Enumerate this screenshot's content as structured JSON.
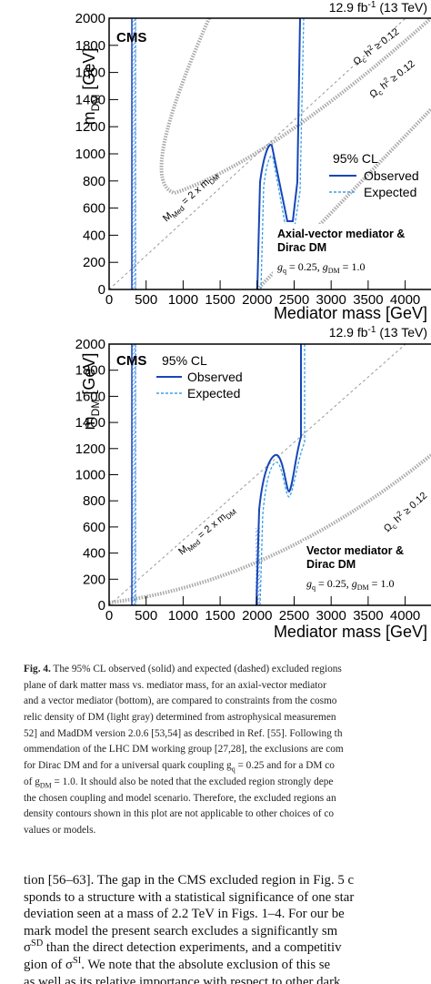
{
  "chart_data": [
    {
      "type": "contour",
      "title": [
        "12.9 fb",
        "-1",
        " (13 TeV)"
      ],
      "experiment": "CMS",
      "xlabel": "Mediator mass [GeV]",
      "ylabel": [
        "m",
        "DM",
        " [GeV]"
      ],
      "xlim": [
        0,
        4300
      ],
      "ylim": [
        0,
        2000
      ],
      "xticks": [
        0,
        500,
        1000,
        1500,
        2000,
        2500,
        3000,
        3500,
        4000
      ],
      "yticks": [
        0,
        200,
        400,
        600,
        800,
        1000,
        1200,
        1400,
        1600,
        1800,
        2000
      ],
      "legend_title": "95% CL",
      "series": [
        {
          "name": "Observed",
          "color": "#1646b8"
        },
        {
          "name": "Expected",
          "color": "#3aa0e8"
        }
      ],
      "relic_label": [
        "Ω",
        "c",
        " h",
        "2",
        " ≥ 0.12"
      ],
      "diagonal_label": [
        "M",
        "Med",
        " = 2 x m",
        "DM"
      ],
      "model": [
        "Axial-vector mediator &",
        "Dirac DM"
      ],
      "coupling": [
        "g",
        "q",
        " = 0.25, ",
        "g",
        "DM",
        " = 1.0"
      ]
    },
    {
      "type": "contour",
      "title": [
        "12.9 fb",
        "-1",
        " (13 TeV)"
      ],
      "experiment": "CMS",
      "xlabel": "Mediator mass [GeV]",
      "ylabel": [
        "m",
        "DM",
        " [GeV]"
      ],
      "xlim": [
        0,
        4300
      ],
      "ylim": [
        0,
        2000
      ],
      "xticks": [
        0,
        500,
        1000,
        1500,
        2000,
        2500,
        3000,
        3500,
        4000
      ],
      "yticks": [
        0,
        200,
        400,
        600,
        800,
        1000,
        1200,
        1400,
        1600,
        1800,
        2000
      ],
      "legend_title": "95% CL",
      "series": [
        {
          "name": "Observed",
          "color": "#1646b8"
        },
        {
          "name": "Expected",
          "color": "#3aa0e8"
        }
      ],
      "relic_label": [
        "Ω",
        "c",
        " h",
        "2",
        " ≥ 0.12"
      ],
      "diagonal_label": [
        "M",
        "Med",
        " = 2 x m",
        "DM"
      ],
      "model": [
        "Vector mediator &",
        "Dirac DM"
      ],
      "coupling": [
        "g",
        "q",
        " = 0.25, ",
        "g",
        "DM",
        " = 1.0"
      ]
    }
  ],
  "caption": [
    [
      "Fig. 4.",
      " The 95% CL observed (solid) and expected (dashed) excluded regions"
    ],
    "plane of dark matter mass vs. mediator mass, for an axial-vector mediator",
    "and a vector mediator (bottom), are compared to constraints from the cosmo",
    "relic density of DM (light gray) determined from astrophysical measuremen",
    "52] and MadDM version 2.0.6 [53,54] as described in Ref. [55]. Following th",
    "ommendation of the LHC DM working group [27,28], the exclusions are com",
    [
      "for Dirac DM and for a universal quark coupling g",
      "q",
      " = 0.25 and for a DM co"
    ],
    [
      "of g",
      "DM",
      " = 1.0. It should also be noted that the excluded region strongly depe"
    ],
    "the chosen coupling and model scenario. Therefore, the excluded regions an",
    "density contours shown in this plot are not applicable to other choices of co",
    "values or models."
  ],
  "body": [
    "tion [56–63]. The gap in the CMS excluded region in Fig. 5 c",
    "sponds to a structure with a statistical significance of one star",
    "deviation seen at a mass of 2.2 TeV in Figs. 1–4. For our be",
    "mark model the present search excludes a significantly sm",
    [
      "σ",
      "SD",
      " than the direct detection experiments, and a competitiv"
    ],
    [
      "gion of σ",
      "SI",
      ". We note that the absolute exclusion of this se"
    ],
    "as well as its relative importance with respect to other dark"
  ]
}
